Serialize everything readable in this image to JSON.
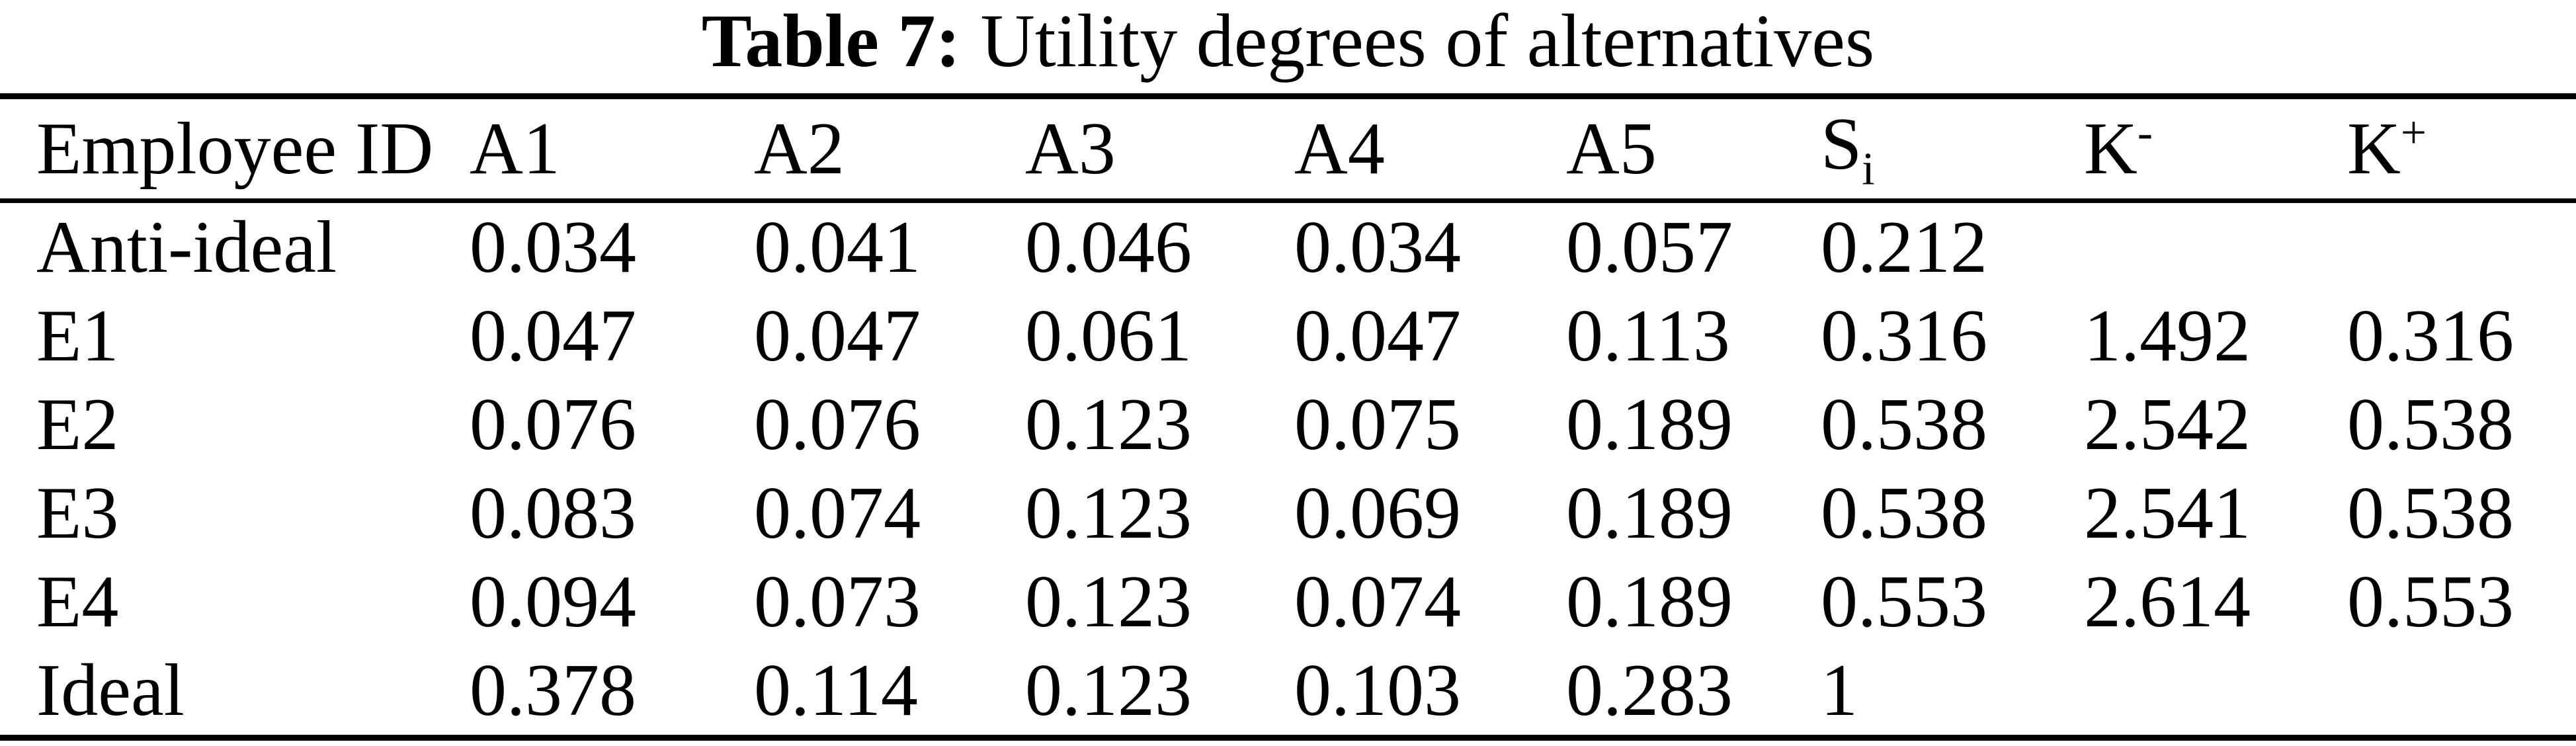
{
  "caption": {
    "label": "Table 7:",
    "text": "Utility degrees of alternatives"
  },
  "table": {
    "columns": [
      {
        "key": "employee-id",
        "label": "Employee ID"
      },
      {
        "key": "a1",
        "label": "A1"
      },
      {
        "key": "a2",
        "label": "A2"
      },
      {
        "key": "a3",
        "label": "A3"
      },
      {
        "key": "a4",
        "label": "A4"
      },
      {
        "key": "a5",
        "label": "A5"
      },
      {
        "key": "si",
        "label": "S",
        "sub": "i"
      },
      {
        "key": "k-minus",
        "label": "K",
        "sup": "-"
      },
      {
        "key": "k-plus",
        "label": "K",
        "sup": "+"
      }
    ],
    "rows": [
      [
        "Anti-ideal",
        "0.034",
        "0.041",
        "0.046",
        "0.034",
        "0.057",
        "0.212",
        "",
        ""
      ],
      [
        "E1",
        "0.047",
        "0.047",
        "0.061",
        "0.047",
        "0.113",
        "0.316",
        "1.492",
        "0.316"
      ],
      [
        "E2",
        "0.076",
        "0.076",
        "0.123",
        "0.075",
        "0.189",
        "0.538",
        "2.542",
        "0.538"
      ],
      [
        "E3",
        "0.083",
        "0.074",
        "0.123",
        "0.069",
        "0.189",
        "0.538",
        "2.541",
        "0.538"
      ],
      [
        "E4",
        "0.094",
        "0.073",
        "0.123",
        "0.074",
        "0.189",
        "0.553",
        "2.614",
        "0.553"
      ],
      [
        "Ideal",
        "0.378",
        "0.114",
        "0.123",
        "0.103",
        "0.283",
        "1",
        "",
        ""
      ]
    ]
  }
}
